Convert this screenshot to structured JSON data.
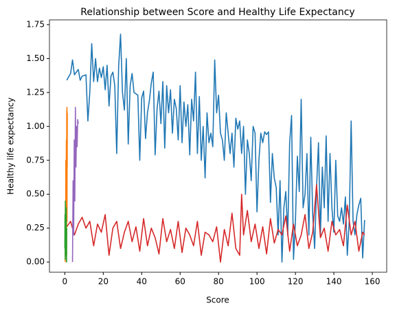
{
  "chart_data": {
    "type": "line",
    "title": "Relationship between Score and Healthy Life Expectancy",
    "xlabel": "Score",
    "ylabel": "Healthy life expectancy",
    "xlim": [
      -8,
      167.5
    ],
    "ylim": [
      -0.075,
      1.785
    ],
    "xticks": [
      0,
      20,
      40,
      60,
      80,
      100,
      120,
      140,
      160
    ],
    "yticks": [
      {
        "value": 0,
        "label": "0.00"
      },
      {
        "value": 0.25,
        "label": "0.25"
      },
      {
        "value": 0.5,
        "label": "0.50"
      },
      {
        "value": 0.75,
        "label": "0.75"
      },
      {
        "value": 1,
        "label": "1.00"
      },
      {
        "value": 1.25,
        "label": "1.25"
      },
      {
        "value": 1.5,
        "label": "1.50"
      },
      {
        "value": 1.75,
        "label": "1.75"
      }
    ],
    "series": [
      {
        "color": "#1f77b4",
        "x": [
          1,
          3,
          4,
          5,
          7,
          8,
          9,
          11,
          12,
          13,
          14,
          15,
          16,
          17,
          18,
          19,
          20,
          21,
          22,
          23,
          24,
          25,
          26,
          27,
          28,
          29,
          30,
          31,
          32,
          33,
          34,
          35,
          36,
          37,
          38,
          39,
          40,
          41,
          42,
          43,
          44,
          45,
          46,
          47,
          48,
          49,
          50,
          51,
          52,
          53,
          54,
          55,
          56,
          57,
          58,
          59,
          60,
          61,
          62,
          63,
          64,
          65,
          66,
          67,
          68,
          69,
          70,
          71,
          72,
          73,
          74,
          75,
          76,
          77,
          78,
          79,
          80,
          81,
          82,
          83,
          84,
          85,
          86,
          87,
          88,
          89,
          90,
          91,
          92,
          93,
          94,
          95,
          96,
          97,
          98,
          99,
          100,
          101,
          102,
          103,
          104,
          105,
          106,
          107,
          108,
          109,
          110,
          111,
          112,
          113,
          114,
          115,
          116,
          117,
          118,
          119,
          120,
          121,
          122,
          123,
          124,
          125,
          126,
          127,
          128,
          129,
          130,
          131,
          132,
          133,
          134,
          135,
          136,
          137,
          138,
          139,
          140,
          141,
          142,
          143,
          144,
          145,
          146,
          147,
          148,
          149,
          150,
          151,
          152,
          153,
          154,
          155,
          156
        ],
        "values": [
          1.34,
          1.39,
          1.49,
          1.38,
          1.42,
          1.34,
          1.37,
          1.38,
          1.04,
          1.25,
          1.61,
          1.33,
          1.5,
          1.33,
          1.43,
          1.36,
          1.44,
          1.27,
          1.45,
          1.15,
          1.37,
          1.4,
          1.3,
          0.8,
          1.44,
          1.68,
          1.25,
          1.12,
          1.5,
          0.87,
          1.3,
          1.39,
          1.25,
          1.24,
          1.23,
          0.75,
          1.21,
          1.26,
          0.91,
          1.1,
          1.19,
          1.32,
          1.4,
          0.79,
          1.13,
          1.26,
          1.02,
          1.33,
          0.84,
          1.3,
          1.1,
          1.27,
          0.95,
          1.2,
          1.13,
          0.9,
          1.3,
          0.88,
          1.18,
          1.0,
          1.16,
          0.79,
          1.2,
          1.04,
          1.4,
          0.8,
          1.22,
          0.75,
          1.0,
          0.62,
          1.1,
          0.88,
          0.95,
          0.85,
          1.49,
          1.1,
          1.23,
          0.95,
          0.9,
          0.75,
          1.1,
          0.95,
          0.8,
          0.95,
          0.7,
          1.06,
          0.98,
          1.04,
          0.8,
          1.0,
          0.5,
          0.9,
          0.8,
          0.6,
          1.0,
          0.95,
          0.37,
          0.75,
          0.95,
          0.88,
          0.96,
          0.94,
          0.96,
          0.44,
          0.8,
          0.62,
          0.55,
          0.2,
          0.6,
          0.0,
          0.4,
          0.52,
          0.2,
          0.88,
          1.08,
          0.02,
          0.3,
          0.78,
          0.52,
          1.2,
          0.4,
          0.5,
          0.8,
          0.2,
          0.92,
          0.35,
          0.1,
          0.55,
          0.88,
          0.2,
          0.7,
          0.4,
          0.93,
          0.3,
          0.8,
          0.4,
          0.22,
          0.75,
          0.34,
          0.3,
          0.4,
          0.28,
          0.48,
          0.05,
          0.3,
          1.04,
          0.3,
          0.2,
          0.35,
          0.42,
          0.47,
          0.03,
          0.31
        ]
      },
      {
        "color": "#d62728",
        "x": [
          1,
          3,
          5,
          7,
          9,
          11,
          13,
          15,
          17,
          19,
          21,
          23,
          25,
          27,
          29,
          31,
          33,
          35,
          37,
          39,
          41,
          43,
          45,
          47,
          49,
          51,
          53,
          55,
          57,
          59,
          61,
          63,
          65,
          67,
          69,
          71,
          73,
          75,
          77,
          79,
          81,
          83,
          85,
          87,
          89,
          91,
          92,
          93,
          95,
          97,
          99,
          101,
          103,
          105,
          107,
          109,
          111,
          113,
          115,
          117,
          119,
          121,
          123,
          125,
          127,
          129,
          131,
          133,
          135,
          137,
          139,
          141,
          143,
          145,
          147,
          149,
          151,
          153,
          155,
          156
        ],
        "values": [
          0.26,
          0.3,
          0.2,
          0.28,
          0.33,
          0.25,
          0.3,
          0.12,
          0.28,
          0.22,
          0.35,
          0.05,
          0.25,
          0.3,
          0.1,
          0.22,
          0.3,
          0.15,
          0.26,
          0.08,
          0.32,
          0.12,
          0.25,
          0.18,
          0.06,
          0.32,
          0.15,
          0.24,
          0.1,
          0.3,
          0.07,
          0.25,
          0.2,
          0.12,
          0.3,
          0.05,
          0.22,
          0.2,
          0.15,
          0.26,
          0.0,
          0.24,
          0.12,
          0.36,
          0.1,
          0.05,
          0.5,
          0.2,
          0.38,
          0.15,
          0.28,
          0.1,
          0.26,
          0.06,
          0.32,
          0.14,
          0.24,
          0.2,
          0.34,
          0.08,
          0.28,
          0.12,
          0.2,
          0.35,
          0.1,
          0.22,
          0.57,
          0.18,
          0.25,
          0.08,
          0.3,
          0.2,
          0.24,
          0.12,
          0.42,
          0.2,
          0.3,
          0.08,
          0.22,
          0.2
        ]
      },
      {
        "color": "#ff7f0e",
        "x": [
          0.2,
          0.3,
          0.4,
          0.5,
          0.6,
          0.7,
          0.8,
          0.9,
          1.0,
          1.05,
          1.1,
          1.15,
          1.2,
          1.25,
          1.3
        ],
        "values": [
          0.0,
          0.45,
          0.1,
          0.75,
          0.2,
          0.6,
          0.9,
          0.05,
          1.12,
          0.4,
          1.14,
          0.3,
          0.95,
          0.7,
          1.1
        ]
      },
      {
        "color": "#2ca02c",
        "x": [
          0.0,
          0.1,
          0.2,
          0.3,
          0.4,
          0.5,
          0.6,
          0.7,
          0.8,
          0.9,
          1.0
        ],
        "values": [
          0.1,
          0.35,
          0.02,
          0.45,
          0.15,
          0.3,
          0.05,
          0.4,
          0.2,
          0.0,
          0.25
        ]
      },
      {
        "color": "#9467bd",
        "x": [
          4.0,
          4.3,
          4.6,
          4.9,
          5.2,
          5.5,
          5.8,
          6.1,
          6.4,
          6.7,
          7.0
        ],
        "values": [
          0.0,
          0.6,
          0.2,
          0.9,
          0.45,
          1.14,
          0.7,
          1.0,
          0.85,
          1.05,
          1.02
        ]
      }
    ]
  }
}
